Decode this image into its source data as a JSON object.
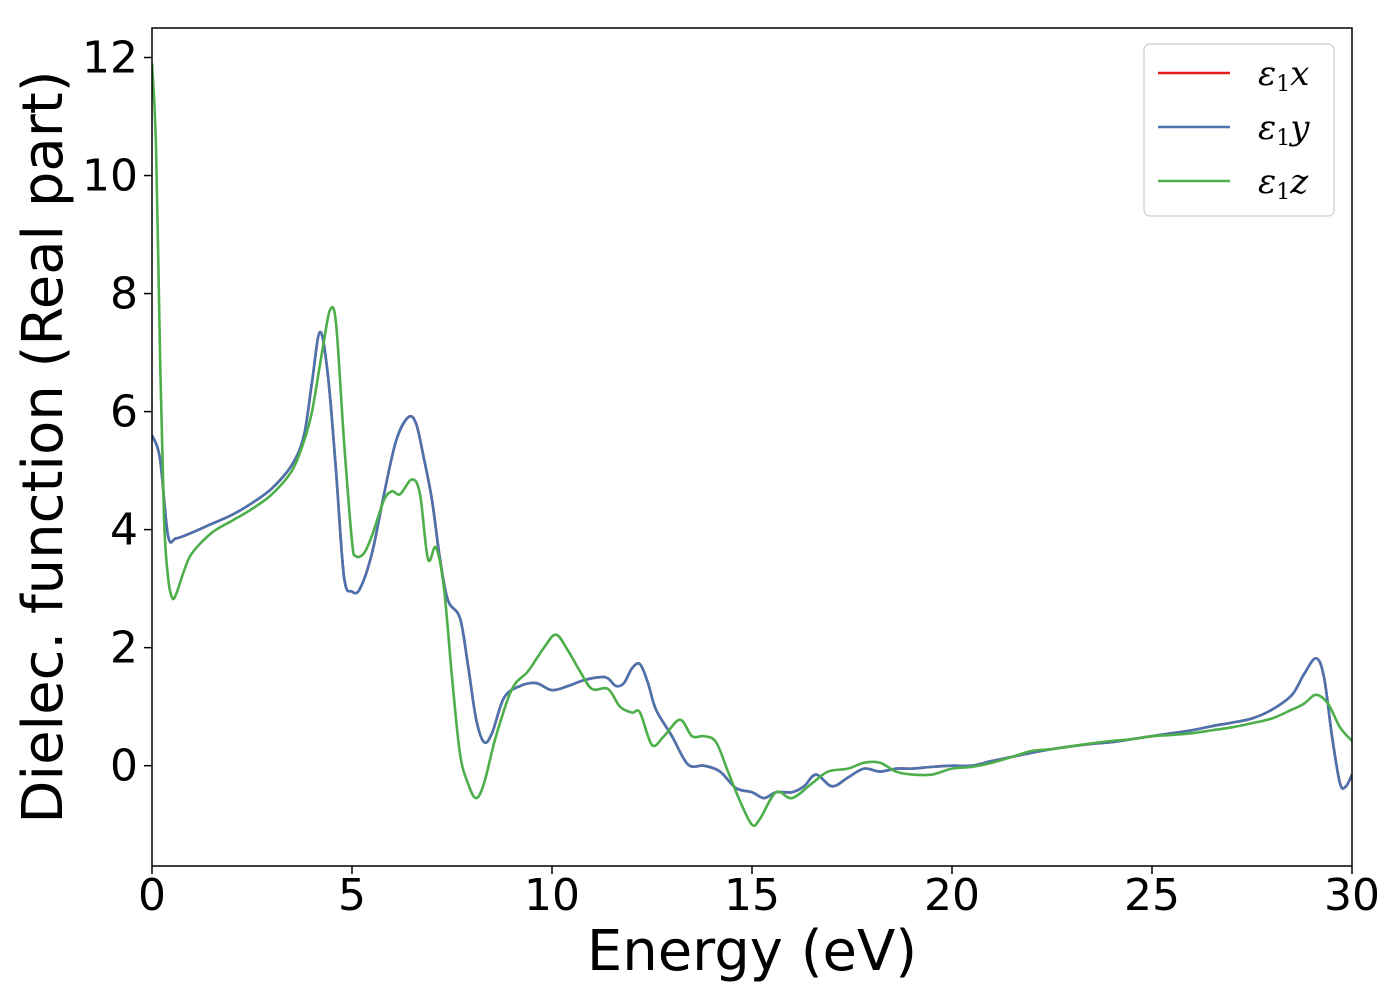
{
  "chart_data": {
    "type": "line",
    "title": "",
    "xlabel": "Energy (eV)",
    "ylabel": "Dielec. function (Real part)",
    "xlim": [
      0,
      30
    ],
    "ylim": [
      -1.7,
      12.5
    ],
    "xticks": [
      0,
      5,
      10,
      15,
      20,
      25,
      30
    ],
    "yticks": [
      0,
      2,
      4,
      6,
      8,
      10,
      12
    ],
    "grid": false,
    "legend_position": "top-right",
    "series": [
      {
        "name": "ε1x",
        "legend_base": "ε",
        "legend_sub": "1",
        "legend_var": "x",
        "color": "#e41a1c",
        "points": [
          [
            0,
            5.6
          ],
          [
            0.2,
            5.2
          ],
          [
            0.4,
            3.9
          ],
          [
            0.6,
            3.85
          ],
          [
            1,
            3.95
          ],
          [
            1.5,
            4.1
          ],
          [
            2,
            4.25
          ],
          [
            2.5,
            4.45
          ],
          [
            3,
            4.7
          ],
          [
            3.5,
            5.1
          ],
          [
            3.8,
            5.6
          ],
          [
            4.0,
            6.5
          ],
          [
            4.2,
            7.35
          ],
          [
            4.4,
            6.6
          ],
          [
            4.6,
            5.0
          ],
          [
            4.8,
            3.2
          ],
          [
            5.0,
            2.95
          ],
          [
            5.2,
            3.0
          ],
          [
            5.5,
            3.6
          ],
          [
            5.8,
            4.6
          ],
          [
            6.1,
            5.5
          ],
          [
            6.4,
            5.9
          ],
          [
            6.6,
            5.8
          ],
          [
            6.8,
            5.2
          ],
          [
            7.0,
            4.5
          ],
          [
            7.2,
            3.5
          ],
          [
            7.4,
            2.8
          ],
          [
            7.7,
            2.5
          ],
          [
            7.9,
            1.7
          ],
          [
            8.1,
            0.8
          ],
          [
            8.3,
            0.4
          ],
          [
            8.5,
            0.55
          ],
          [
            8.8,
            1.15
          ],
          [
            9.2,
            1.35
          ],
          [
            9.6,
            1.4
          ],
          [
            10.0,
            1.28
          ],
          [
            10.4,
            1.35
          ],
          [
            10.8,
            1.45
          ],
          [
            11.2,
            1.5
          ],
          [
            11.4,
            1.48
          ],
          [
            11.6,
            1.35
          ],
          [
            11.8,
            1.4
          ],
          [
            12.0,
            1.65
          ],
          [
            12.2,
            1.72
          ],
          [
            12.4,
            1.4
          ],
          [
            12.6,
            0.95
          ],
          [
            13.0,
            0.5
          ],
          [
            13.4,
            0.02
          ],
          [
            13.8,
            0.0
          ],
          [
            14.2,
            -0.1
          ],
          [
            14.6,
            -0.38
          ],
          [
            15.0,
            -0.45
          ],
          [
            15.3,
            -0.55
          ],
          [
            15.6,
            -0.45
          ],
          [
            16.0,
            -0.45
          ],
          [
            16.3,
            -0.35
          ],
          [
            16.6,
            -0.15
          ],
          [
            17.0,
            -0.35
          ],
          [
            17.4,
            -0.2
          ],
          [
            17.8,
            -0.05
          ],
          [
            18.2,
            -0.1
          ],
          [
            18.6,
            -0.05
          ],
          [
            19.0,
            -0.05
          ],
          [
            19.5,
            -0.02
          ],
          [
            20.0,
            0.0
          ],
          [
            20.5,
            0.0
          ],
          [
            21.0,
            0.08
          ],
          [
            21.5,
            0.15
          ],
          [
            22.0,
            0.22
          ],
          [
            22.5,
            0.28
          ],
          [
            23.0,
            0.33
          ],
          [
            23.5,
            0.37
          ],
          [
            24.0,
            0.4
          ],
          [
            24.5,
            0.45
          ],
          [
            25.0,
            0.5
          ],
          [
            25.5,
            0.55
          ],
          [
            26.0,
            0.6
          ],
          [
            26.5,
            0.67
          ],
          [
            27.0,
            0.73
          ],
          [
            27.5,
            0.8
          ],
          [
            28.0,
            0.95
          ],
          [
            28.5,
            1.2
          ],
          [
            28.8,
            1.55
          ],
          [
            29.1,
            1.82
          ],
          [
            29.3,
            1.5
          ],
          [
            29.5,
            0.5
          ],
          [
            29.7,
            -0.3
          ],
          [
            29.85,
            -0.35
          ],
          [
            30.0,
            -0.15
          ]
        ]
      },
      {
        "name": "ε1y",
        "legend_base": "ε",
        "legend_sub": "1",
        "legend_var": "y",
        "color": "#4a74b0",
        "points": [
          [
            0,
            5.6
          ],
          [
            0.2,
            5.2
          ],
          [
            0.4,
            3.9
          ],
          [
            0.6,
            3.85
          ],
          [
            1,
            3.95
          ],
          [
            1.5,
            4.1
          ],
          [
            2,
            4.25
          ],
          [
            2.5,
            4.45
          ],
          [
            3,
            4.7
          ],
          [
            3.5,
            5.1
          ],
          [
            3.8,
            5.6
          ],
          [
            4.0,
            6.5
          ],
          [
            4.2,
            7.35
          ],
          [
            4.4,
            6.6
          ],
          [
            4.6,
            5.0
          ],
          [
            4.8,
            3.2
          ],
          [
            5.0,
            2.95
          ],
          [
            5.2,
            3.0
          ],
          [
            5.5,
            3.6
          ],
          [
            5.8,
            4.6
          ],
          [
            6.1,
            5.5
          ],
          [
            6.4,
            5.9
          ],
          [
            6.6,
            5.8
          ],
          [
            6.8,
            5.2
          ],
          [
            7.0,
            4.5
          ],
          [
            7.2,
            3.5
          ],
          [
            7.4,
            2.8
          ],
          [
            7.7,
            2.5
          ],
          [
            7.9,
            1.7
          ],
          [
            8.1,
            0.8
          ],
          [
            8.3,
            0.4
          ],
          [
            8.5,
            0.55
          ],
          [
            8.8,
            1.15
          ],
          [
            9.2,
            1.35
          ],
          [
            9.6,
            1.4
          ],
          [
            10.0,
            1.28
          ],
          [
            10.4,
            1.35
          ],
          [
            10.8,
            1.45
          ],
          [
            11.2,
            1.5
          ],
          [
            11.4,
            1.48
          ],
          [
            11.6,
            1.35
          ],
          [
            11.8,
            1.4
          ],
          [
            12.0,
            1.65
          ],
          [
            12.2,
            1.72
          ],
          [
            12.4,
            1.4
          ],
          [
            12.6,
            0.95
          ],
          [
            13.0,
            0.5
          ],
          [
            13.4,
            0.02
          ],
          [
            13.8,
            0.0
          ],
          [
            14.2,
            -0.1
          ],
          [
            14.6,
            -0.38
          ],
          [
            15.0,
            -0.45
          ],
          [
            15.3,
            -0.55
          ],
          [
            15.6,
            -0.45
          ],
          [
            16.0,
            -0.45
          ],
          [
            16.3,
            -0.35
          ],
          [
            16.6,
            -0.15
          ],
          [
            17.0,
            -0.35
          ],
          [
            17.4,
            -0.2
          ],
          [
            17.8,
            -0.05
          ],
          [
            18.2,
            -0.1
          ],
          [
            18.6,
            -0.05
          ],
          [
            19.0,
            -0.05
          ],
          [
            19.5,
            -0.02
          ],
          [
            20.0,
            0.0
          ],
          [
            20.5,
            0.0
          ],
          [
            21.0,
            0.08
          ],
          [
            21.5,
            0.15
          ],
          [
            22.0,
            0.22
          ],
          [
            22.5,
            0.28
          ],
          [
            23.0,
            0.33
          ],
          [
            23.5,
            0.37
          ],
          [
            24.0,
            0.4
          ],
          [
            24.5,
            0.45
          ],
          [
            25.0,
            0.5
          ],
          [
            25.5,
            0.55
          ],
          [
            26.0,
            0.6
          ],
          [
            26.5,
            0.67
          ],
          [
            27.0,
            0.73
          ],
          [
            27.5,
            0.8
          ],
          [
            28.0,
            0.95
          ],
          [
            28.5,
            1.2
          ],
          [
            28.8,
            1.55
          ],
          [
            29.1,
            1.82
          ],
          [
            29.3,
            1.5
          ],
          [
            29.5,
            0.5
          ],
          [
            29.7,
            -0.3
          ],
          [
            29.85,
            -0.35
          ],
          [
            30.0,
            -0.15
          ]
        ]
      },
      {
        "name": "ε1z",
        "legend_base": "ε",
        "legend_sub": "1",
        "legend_var": "z",
        "color": "#4daf4a",
        "points": [
          [
            0,
            11.9
          ],
          [
            0.1,
            10.5
          ],
          [
            0.2,
            7.0
          ],
          [
            0.3,
            4.2
          ],
          [
            0.4,
            3.2
          ],
          [
            0.5,
            2.85
          ],
          [
            0.6,
            2.9
          ],
          [
            0.8,
            3.3
          ],
          [
            1.0,
            3.6
          ],
          [
            1.5,
            3.95
          ],
          [
            2.0,
            4.15
          ],
          [
            2.5,
            4.35
          ],
          [
            3.0,
            4.6
          ],
          [
            3.5,
            5.0
          ],
          [
            3.8,
            5.5
          ],
          [
            4.0,
            6.0
          ],
          [
            4.2,
            6.8
          ],
          [
            4.3,
            7.2
          ],
          [
            4.45,
            7.72
          ],
          [
            4.6,
            7.5
          ],
          [
            4.8,
            5.5
          ],
          [
            5.0,
            3.8
          ],
          [
            5.1,
            3.55
          ],
          [
            5.3,
            3.6
          ],
          [
            5.5,
            3.9
          ],
          [
            5.8,
            4.5
          ],
          [
            6.0,
            4.65
          ],
          [
            6.2,
            4.6
          ],
          [
            6.5,
            4.85
          ],
          [
            6.7,
            4.6
          ],
          [
            6.9,
            3.5
          ],
          [
            7.1,
            3.7
          ],
          [
            7.3,
            3.0
          ],
          [
            7.5,
            1.5
          ],
          [
            7.7,
            0.2
          ],
          [
            7.9,
            -0.3
          ],
          [
            8.1,
            -0.55
          ],
          [
            8.3,
            -0.3
          ],
          [
            8.6,
            0.5
          ],
          [
            9.0,
            1.3
          ],
          [
            9.4,
            1.6
          ],
          [
            9.8,
            2.0
          ],
          [
            10.1,
            2.22
          ],
          [
            10.4,
            1.95
          ],
          [
            10.7,
            1.6
          ],
          [
            11.0,
            1.3
          ],
          [
            11.4,
            1.3
          ],
          [
            11.7,
            1.0
          ],
          [
            12.0,
            0.9
          ],
          [
            12.2,
            0.9
          ],
          [
            12.5,
            0.35
          ],
          [
            12.8,
            0.5
          ],
          [
            13.2,
            0.78
          ],
          [
            13.5,
            0.5
          ],
          [
            13.8,
            0.5
          ],
          [
            14.1,
            0.4
          ],
          [
            14.4,
            -0.1
          ],
          [
            14.7,
            -0.6
          ],
          [
            15.0,
            -1.0
          ],
          [
            15.2,
            -0.9
          ],
          [
            15.6,
            -0.45
          ],
          [
            16.0,
            -0.55
          ],
          [
            16.5,
            -0.3
          ],
          [
            16.9,
            -0.1
          ],
          [
            17.4,
            -0.05
          ],
          [
            17.8,
            0.05
          ],
          [
            18.2,
            0.05
          ],
          [
            18.6,
            -0.1
          ],
          [
            19.0,
            -0.15
          ],
          [
            19.5,
            -0.15
          ],
          [
            20.0,
            -0.05
          ],
          [
            20.5,
            -0.02
          ],
          [
            21.0,
            0.05
          ],
          [
            21.5,
            0.15
          ],
          [
            22.0,
            0.25
          ],
          [
            22.5,
            0.28
          ],
          [
            23.0,
            0.33
          ],
          [
            23.5,
            0.38
          ],
          [
            24.0,
            0.42
          ],
          [
            24.5,
            0.45
          ],
          [
            25.0,
            0.5
          ],
          [
            25.5,
            0.52
          ],
          [
            26.0,
            0.55
          ],
          [
            26.5,
            0.6
          ],
          [
            27.0,
            0.65
          ],
          [
            27.5,
            0.72
          ],
          [
            28.0,
            0.8
          ],
          [
            28.5,
            0.95
          ],
          [
            28.8,
            1.05
          ],
          [
            29.1,
            1.2
          ],
          [
            29.4,
            1.05
          ],
          [
            29.7,
            0.65
          ],
          [
            30.0,
            0.42
          ]
        ]
      }
    ]
  }
}
